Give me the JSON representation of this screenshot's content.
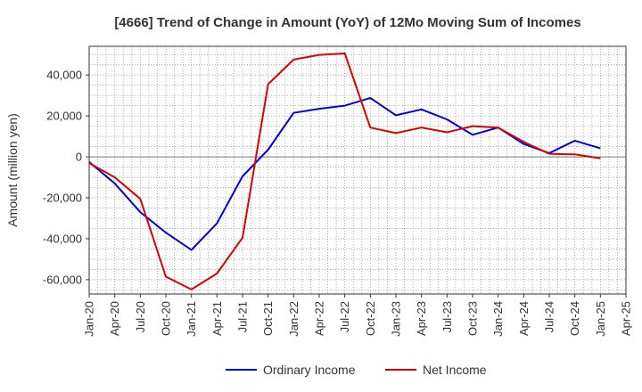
{
  "chart_data": {
    "type": "line",
    "title": "[4666]  Trend of Change in Amount (YoY) of 12Mo Moving Sum of Incomes",
    "xlabel": "",
    "ylabel": "Amount (million yen)",
    "x": [
      "Jan-20",
      "Apr-20",
      "Jul-20",
      "Oct-20",
      "Jan-21",
      "Apr-21",
      "Jul-21",
      "Oct-21",
      "Jan-22",
      "Apr-22",
      "Jul-22",
      "Oct-22",
      "Jan-23",
      "Apr-23",
      "Jul-23",
      "Oct-23",
      "Jan-24",
      "Apr-24",
      "Jul-24",
      "Oct-24",
      "Jan-25",
      "Apr-25"
    ],
    "yticks": [
      -60000,
      -40000,
      -20000,
      0,
      20000,
      40000
    ],
    "ytick_labels": [
      "-60,000",
      "-40,000",
      "-20,000",
      "0",
      "20,000",
      "40,000"
    ],
    "ylim": [
      -67000,
      54000
    ],
    "grid": true,
    "legend_position": "bottom",
    "series": [
      {
        "name": "Ordinary Income",
        "color": "#0000dd",
        "values": [
          -2500,
          -13000,
          -27000,
          -37000,
          -45500,
          -32500,
          -9500,
          3500,
          21500,
          23500,
          25000,
          28800,
          20300,
          23200,
          18300,
          10800,
          14300,
          6300,
          1800,
          7900,
          4200,
          null
        ]
      },
      {
        "name": "Net Income",
        "color": "#dd0000",
        "values": [
          -3000,
          -10000,
          -20500,
          -58500,
          -64800,
          -57000,
          -39500,
          35500,
          47500,
          49800,
          50500,
          14300,
          11600,
          14300,
          12000,
          15000,
          14300,
          7300,
          1500,
          1200,
          -700,
          null
        ]
      }
    ]
  }
}
